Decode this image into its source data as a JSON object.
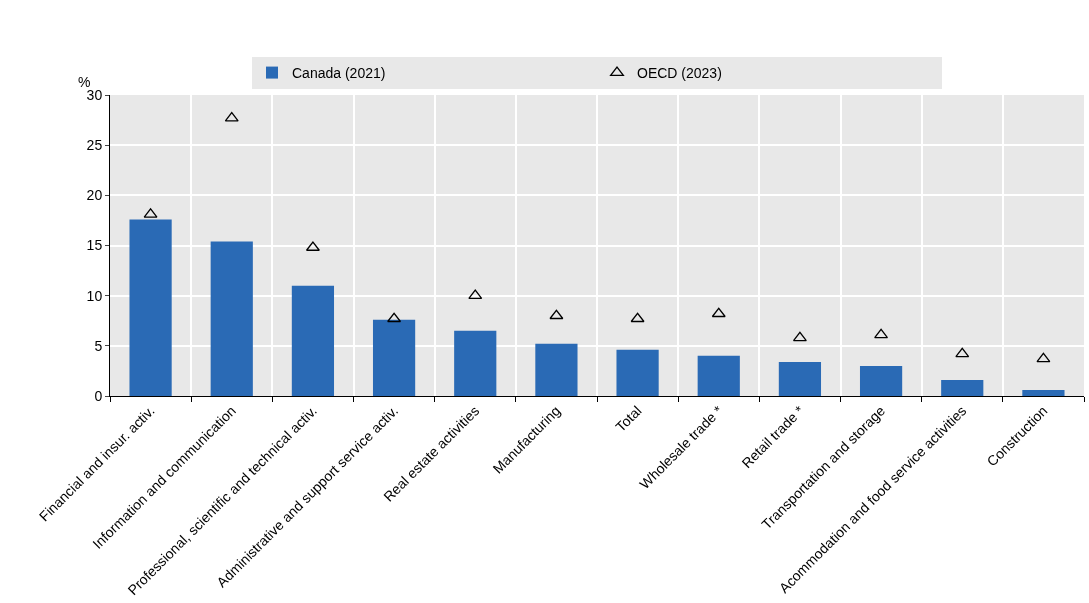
{
  "chart_data": {
    "type": "bar",
    "ylabel": "%",
    "categories": [
      "Financial and insur. activ.",
      "Information and communication",
      "Professional, scientific and technical activ.",
      "Administrative and support service activ.",
      "Real estate activities",
      "Manufacturing",
      "Total",
      "Wholesale trade *",
      "Retail trade *",
      "Transportation and storage",
      "Acommodation and food service activities",
      "Construction"
    ],
    "series": [
      {
        "name": "Canada (2021)",
        "color": "#2a6ab5",
        "values": [
          17.6,
          15.4,
          11.0,
          7.6,
          6.5,
          5.2,
          4.6,
          4.0,
          3.4,
          3.0,
          1.6,
          0.6
        ]
      },
      {
        "name": "OECD (2023)",
        "type": "scatter",
        "marker": "triangle",
        "color": "#000000",
        "values": [
          18.1,
          27.7,
          14.8,
          7.7,
          10.0,
          8.0,
          7.7,
          8.2,
          5.8,
          6.1,
          4.2,
          3.7
        ]
      }
    ],
    "ylim": [
      0,
      30
    ],
    "yticks": [
      0,
      5,
      10,
      15,
      20,
      25,
      30
    ],
    "grid": true,
    "legend": "top"
  }
}
